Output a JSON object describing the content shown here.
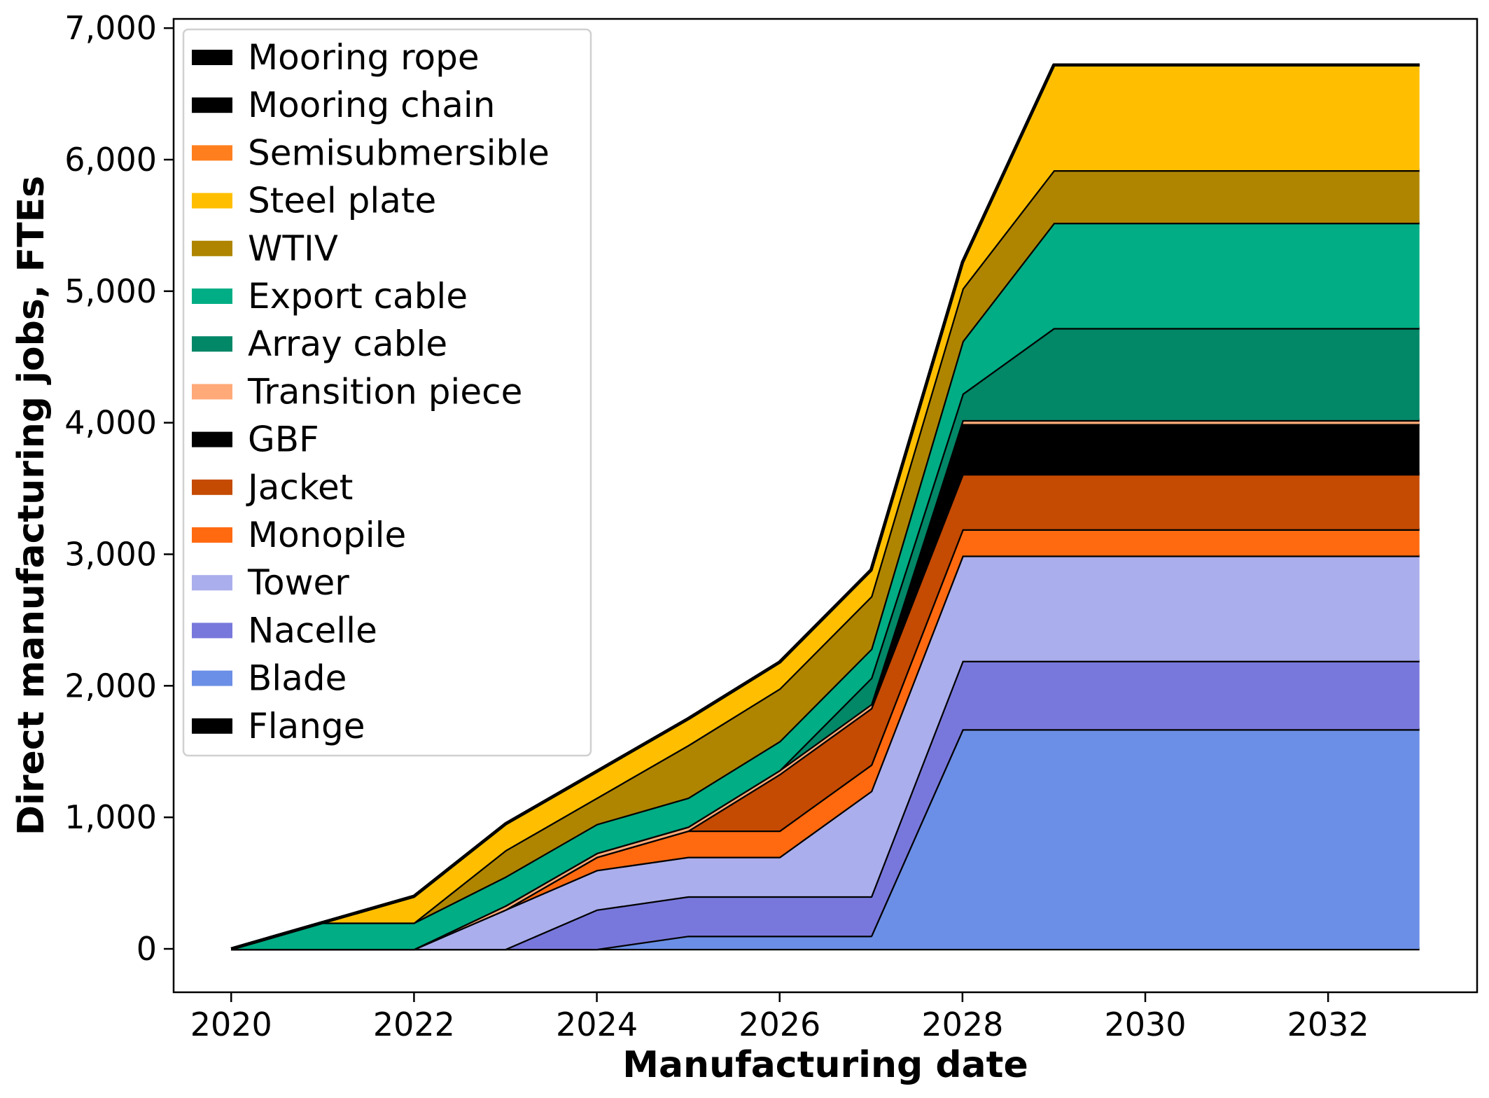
{
  "chart_data": {
    "type": "area",
    "stacked": true,
    "xlabel": "Manufacturing date",
    "ylabel": "Direct manufacturing jobs, FTEs",
    "xlim": [
      2019.37,
      2033.63
    ],
    "ylim": [
      -330,
      7070
    ],
    "x_ticks": [
      2020,
      2022,
      2024,
      2026,
      2028,
      2030,
      2032
    ],
    "x_tick_labels": [
      "2020",
      "2022",
      "2024",
      "2026",
      "2028",
      "2030",
      "2032"
    ],
    "y_ticks": [
      0,
      1000,
      2000,
      3000,
      4000,
      5000,
      6000,
      7000
    ],
    "y_tick_labels": [
      "0",
      "1,000",
      "2,000",
      "3,000",
      "4,000",
      "5,000",
      "6,000",
      "7,000"
    ],
    "grid": false,
    "legend_position": "top-left",
    "x": [
      2020,
      2021,
      2022,
      2023,
      2024,
      2025,
      2026,
      2027,
      2028,
      2029,
      2030,
      2031,
      2032,
      2033
    ],
    "series": [
      {
        "name": "Flange",
        "color": "#000000",
        "values": [
          0,
          0,
          0,
          0,
          0,
          0,
          0,
          0,
          0,
          0,
          0,
          0,
          0,
          0
        ]
      },
      {
        "name": "Blade",
        "color": "#6b8fe6",
        "values": [
          0,
          0,
          0,
          0,
          0,
          100,
          100,
          100,
          1670,
          1670,
          1670,
          1670,
          1670,
          1670
        ]
      },
      {
        "name": "Nacelle",
        "color": "#7878dc",
        "values": [
          0,
          0,
          0,
          0,
          300,
          300,
          300,
          300,
          520,
          520,
          520,
          520,
          520,
          520
        ]
      },
      {
        "name": "Tower",
        "color": "#abaeec",
        "values": [
          0,
          0,
          0,
          300,
          300,
          300,
          300,
          800,
          800,
          800,
          800,
          800,
          800,
          800
        ]
      },
      {
        "name": "Monopile",
        "color": "#ff6a10",
        "values": [
          0,
          0,
          0,
          0,
          100,
          200,
          200,
          200,
          200,
          200,
          200,
          200,
          200,
          200
        ]
      },
      {
        "name": "Jacket",
        "color": "#c54a02",
        "values": [
          0,
          0,
          0,
          0,
          0,
          0,
          430,
          430,
          420,
          420,
          420,
          420,
          420,
          420
        ]
      },
      {
        "name": "GBF",
        "color": "#000000",
        "values": [
          0,
          0,
          0,
          0,
          0,
          0,
          0,
          0,
          380,
          380,
          380,
          380,
          380,
          380
        ]
      },
      {
        "name": "Transition piece",
        "color": "#ffaa78",
        "values": [
          0,
          0,
          0,
          30,
          30,
          30,
          30,
          30,
          30,
          30,
          30,
          30,
          30,
          30
        ]
      },
      {
        "name": "Array cable",
        "color": "#028767",
        "values": [
          0,
          0,
          0,
          0,
          0,
          0,
          0,
          200,
          200,
          700,
          700,
          700,
          700,
          700
        ]
      },
      {
        "name": "Export cable",
        "color": "#00ad84",
        "values": [
          0,
          200,
          200,
          220,
          220,
          220,
          220,
          220,
          400,
          800,
          800,
          800,
          800,
          800
        ]
      },
      {
        "name": "WTIV",
        "color": "#af8500",
        "values": [
          0,
          0,
          0,
          200,
          200,
          400,
          400,
          400,
          400,
          400,
          400,
          400,
          400,
          400
        ]
      },
      {
        "name": "Steel plate",
        "color": "#ffbf00",
        "values": [
          0,
          0,
          200,
          200,
          200,
          200,
          200,
          200,
          200,
          800,
          800,
          800,
          800,
          800
        ]
      },
      {
        "name": "Semisubmersible",
        "color": "#ff7f1f",
        "values": [
          0,
          0,
          0,
          0,
          0,
          0,
          0,
          0,
          0,
          0,
          0,
          0,
          0,
          0
        ]
      },
      {
        "name": "Mooring chain",
        "color": "#000000",
        "values": [
          0,
          0,
          0,
          0,
          0,
          0,
          0,
          0,
          0,
          0,
          0,
          0,
          0,
          0
        ]
      },
      {
        "name": "Mooring rope",
        "color": "#000000",
        "values": [
          0,
          0,
          0,
          0,
          0,
          0,
          0,
          0,
          0,
          0,
          0,
          0,
          0,
          0
        ]
      }
    ]
  }
}
